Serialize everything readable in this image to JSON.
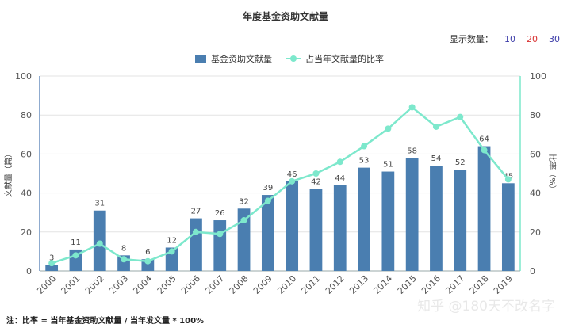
{
  "chart_data": {
    "type": "bar",
    "title": "年度基金资助文献量",
    "categories": [
      "2000",
      "2001",
      "2002",
      "2003",
      "2004",
      "2005",
      "2006",
      "2007",
      "2008",
      "2009",
      "2010",
      "2011",
      "2012",
      "2013",
      "2014",
      "2015",
      "2016",
      "2017",
      "2018",
      "2019"
    ],
    "series": [
      {
        "name": "基金资助文献量",
        "kind": "bar",
        "axis": "left",
        "color": "#4a7eb0",
        "values": [
          3,
          11,
          31,
          8,
          6,
          12,
          27,
          26,
          32,
          39,
          46,
          42,
          44,
          53,
          51,
          58,
          54,
          52,
          64,
          45
        ]
      },
      {
        "name": "占当年文献量的比率",
        "kind": "line",
        "axis": "right",
        "color": "#7de8cc",
        "values": [
          4,
          8,
          14,
          6,
          5,
          10,
          20,
          19,
          26,
          36,
          46,
          50,
          56,
          64,
          73,
          84,
          74,
          79,
          62,
          47
        ]
      }
    ],
    "ylabel": "文献量（篇）",
    "y2label": "比率（%）",
    "ylim": [
      0,
      100
    ],
    "y2lim": [
      0,
      100
    ],
    "yticks": [
      0,
      20,
      40,
      60,
      80,
      100
    ],
    "grid": true,
    "legend": "top-center"
  },
  "controls": {
    "count_label": "显示数量：",
    "options": [
      {
        "label": "10",
        "color": "#3a3aa8"
      },
      {
        "label": "20",
        "color": "#d83030"
      },
      {
        "label": "30",
        "color": "#3a3aa8"
      }
    ]
  },
  "note": "注：比率 = 当年基金资助文献量 / 当年发文量 * 100%",
  "watermark": "知乎 @180天不改名字"
}
